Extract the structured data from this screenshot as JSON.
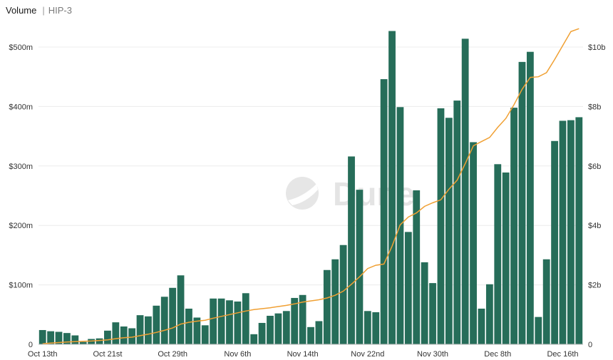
{
  "header": {
    "title": "Volume",
    "subtitle": "HIP-3"
  },
  "watermark": "Dune",
  "colors": {
    "bar": "#266d59",
    "line": "#f0a033",
    "grid": "#ececec"
  },
  "chart_data": {
    "type": "bar",
    "title": "Volume",
    "subtitle": "HIP-3",
    "grid": true,
    "x_tick_labels": [
      "Oct 13th",
      "Oct 21st",
      "Oct 29th",
      "Nov 6th",
      "Nov 14th",
      "Nov 22nd",
      "Nov 30th",
      "Dec 8th",
      "Dec 16th"
    ],
    "y_left": {
      "lim": [
        0,
        530
      ],
      "ticks": [
        0,
        100,
        200,
        300,
        400,
        500
      ],
      "tick_labels": [
        "0",
        "$100m",
        "$200m",
        "$300m",
        "$400m",
        "$500m"
      ]
    },
    "y_right": {
      "lim": [
        0,
        10.6
      ],
      "ticks": [
        0,
        2,
        4,
        6,
        8,
        10
      ],
      "tick_labels": [
        "0",
        "$2b",
        "$4b",
        "$6b",
        "$8b",
        "$10b"
      ]
    },
    "series": [
      {
        "axis": "left",
        "type": "bar",
        "values": [
          24,
          22,
          21,
          19,
          15,
          4,
          9,
          10,
          23,
          37,
          30,
          27,
          49,
          47,
          65,
          80,
          95,
          116,
          60,
          45,
          32,
          77,
          77,
          74,
          72,
          86,
          17,
          36,
          48,
          52,
          56,
          78,
          83,
          29,
          39,
          125,
          143,
          167,
          316,
          260,
          56,
          54,
          446,
          527,
          399,
          189,
          259,
          138,
          103,
          397,
          381,
          410,
          514,
          340,
          60,
          101,
          303,
          289,
          398,
          475,
          492,
          46,
          143,
          342,
          376,
          377,
          382
        ],
        "start_date": "Oct 13th"
      },
      {
        "axis": "right",
        "type": "line",
        "values": [
          0.02,
          0.04,
          0.06,
          0.08,
          0.09,
          0.1,
          0.11,
          0.13,
          0.15,
          0.19,
          0.22,
          0.24,
          0.29,
          0.34,
          0.4,
          0.47,
          0.55,
          0.68,
          0.74,
          0.78,
          0.81,
          0.88,
          0.94,
          1.0,
          1.06,
          1.12,
          1.17,
          1.2,
          1.23,
          1.27,
          1.31,
          1.36,
          1.42,
          1.46,
          1.5,
          1.56,
          1.65,
          1.79,
          2.02,
          2.27,
          2.55,
          2.66,
          2.7,
          3.3,
          4.02,
          4.28,
          4.42,
          4.64,
          4.76,
          4.86,
          5.22,
          5.52,
          6.08,
          6.68,
          6.82,
          6.96,
          7.3,
          7.6,
          8.06,
          8.58,
          8.98,
          9.0,
          9.14,
          9.58,
          10.05,
          10.52,
          10.62
        ]
      }
    ]
  }
}
